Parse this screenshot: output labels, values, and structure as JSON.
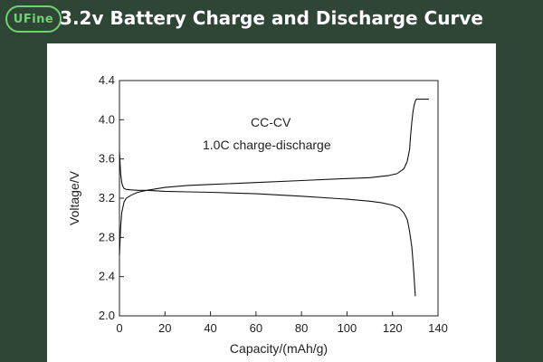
{
  "brand": {
    "logo_text": "UFine",
    "logo_color": "#6fd36f"
  },
  "banner": {
    "title": "3.2v Battery Charge and Discharge Curve",
    "background": "#2f4536"
  },
  "chart_data": {
    "type": "line",
    "title": "",
    "xlabel": "Capacity/(mAh/g)",
    "ylabel": "Voltage/V",
    "xlim": [
      0,
      140
    ],
    "ylim": [
      2.0,
      4.4
    ],
    "xticks": [
      "0",
      "20",
      "40",
      "60",
      "80",
      "100",
      "120",
      "140"
    ],
    "yticks": [
      "2.0",
      "2.4",
      "2.8",
      "3.2",
      "3.6",
      "4.0",
      "4.4"
    ],
    "annotations": [
      "CC-CV",
      "1.0C charge-discharge"
    ],
    "grid": false,
    "series": [
      {
        "x": [
          0,
          0.5,
          1,
          2,
          3,
          5,
          8,
          12,
          20,
          30,
          40,
          60,
          80,
          100,
          110,
          118,
          122,
          125,
          126.5,
          127.5,
          128,
          128.5,
          129,
          129.5,
          130,
          130.5,
          131,
          133,
          136
        ],
        "y": [
          2.62,
          2.9,
          3.05,
          3.16,
          3.2,
          3.23,
          3.26,
          3.28,
          3.31,
          3.33,
          3.34,
          3.36,
          3.38,
          3.4,
          3.41,
          3.43,
          3.45,
          3.5,
          3.58,
          3.7,
          3.85,
          3.98,
          4.08,
          4.15,
          4.19,
          4.21,
          4.21,
          4.21,
          4.21
        ]
      },
      {
        "x": [
          0,
          0.5,
          1,
          1.5,
          2,
          3,
          5,
          8,
          12,
          20,
          30,
          40,
          60,
          80,
          100,
          110,
          115,
          120,
          123,
          125,
          126.5,
          127.5,
          128.5,
          129.2,
          129.6,
          130
        ],
        "y": [
          3.68,
          3.45,
          3.36,
          3.32,
          3.3,
          3.29,
          3.285,
          3.28,
          3.28,
          3.27,
          3.265,
          3.26,
          3.245,
          3.22,
          3.19,
          3.17,
          3.155,
          3.13,
          3.1,
          3.05,
          2.98,
          2.86,
          2.7,
          2.5,
          2.35,
          2.2
        ]
      }
    ]
  }
}
